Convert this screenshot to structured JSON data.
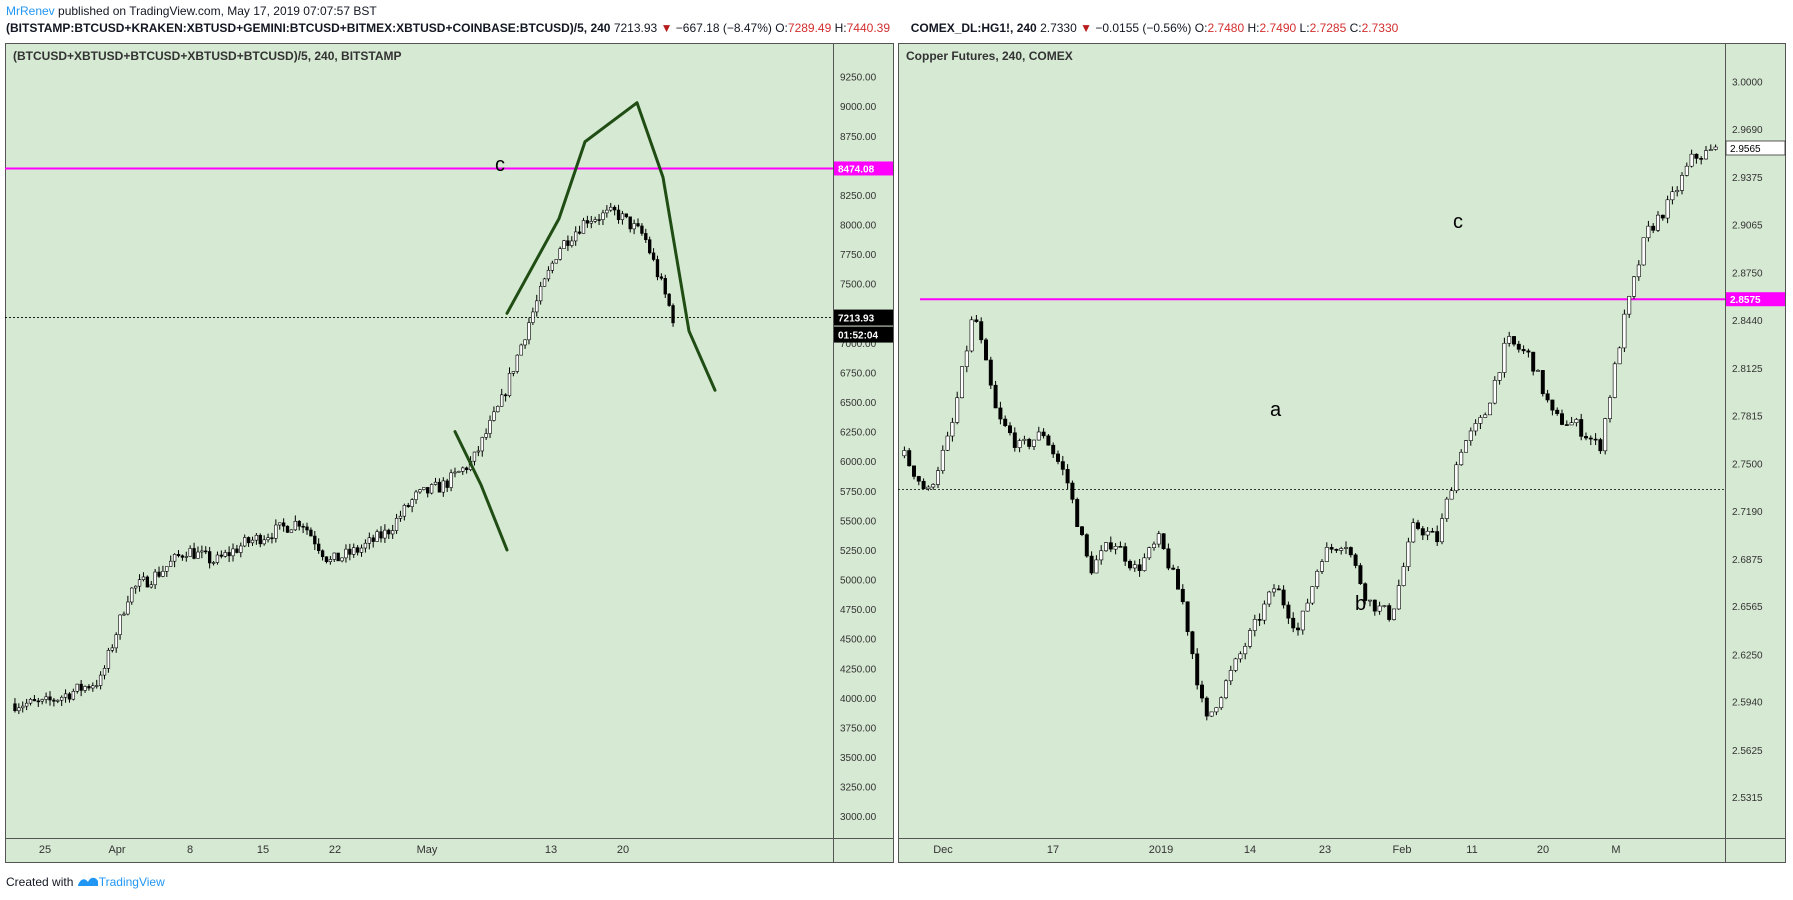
{
  "header": {
    "author": "MrRenev",
    "published": "published on TradingView.com, May 17, 2019 07:07:57 BST",
    "left_symbol": "(BITSTAMP:BTCUSD+KRAKEN:XBTUSD+GEMINI:BTCUSD+BITMEX:XBTUSD+COINBASE:BTCUSD)/5, 240",
    "left_price": "7213.93",
    "left_change": "−667.18 (−8.47%)",
    "left_ohlc": [
      "O:",
      "7289.49",
      "H:",
      "7440.39"
    ],
    "right_symbol": "COMEX_DL:HG1!, 240",
    "right_price": "2.7330",
    "right_change": "−0.0155 (−0.56%)",
    "right_ohlc": [
      "O:",
      "2.7480",
      "H:",
      "2.7490",
      "L:",
      "2.7285",
      "C:",
      "2.7330"
    ]
  },
  "footer": {
    "created": "Created with",
    "brand": "TradingView"
  },
  "colors": {
    "background": "#d6e9d3",
    "candle": "#000000",
    "level_line": "#ff00ff",
    "drawing": "#1f4d14",
    "label_red": "#b71c1c"
  },
  "chart_data": [
    {
      "type": "candlestick",
      "title": "(BTCUSD+XBTUSD+BTCUSD+XBTUSD+BTCUSD)/5, 240, BITSTAMP",
      "ylim": [
        2900,
        9450
      ],
      "y_ticks": [
        "9250.00",
        "9000.00",
        "8750.00",
        "8500.00",
        "8250.00",
        "8000.00",
        "7750.00",
        "7500.00",
        "7250.00",
        "7000.00",
        "6750.00",
        "6500.00",
        "6250.00",
        "6000.00",
        "5750.00",
        "5500.00",
        "5250.00",
        "5000.00",
        "4750.00",
        "4500.00",
        "4250.00",
        "4000.00",
        "3750.00",
        "3500.00",
        "3250.00",
        "3000.00"
      ],
      "x_ticks": [
        "25",
        "Apr",
        "8",
        "15",
        "22",
        "May",
        "13",
        "20"
      ],
      "series": [
        {
          "x": [
            "Mar 24",
            "Mar 28",
            "Mar 31",
            "Apr 2",
            "Apr 3",
            "Apr 6",
            "Apr 10",
            "Apr 14",
            "Apr 18",
            "Apr 22",
            "Apr 25",
            "Apr 26",
            "Apr 29",
            "May 1",
            "May 4",
            "May 7",
            "May 9",
            "May 11",
            "May 12",
            "May 13",
            "May 14",
            "May 15",
            "May 16",
            "May 17"
          ],
          "values": [
            3950,
            3950,
            4050,
            4150,
            4900,
            5050,
            5250,
            5150,
            5300,
            5400,
            5500,
            5150,
            5250,
            5400,
            5700,
            5800,
            6000,
            6500,
            7200,
            7800,
            8050,
            8100,
            7900,
            7214
          ]
        }
      ],
      "level_line": {
        "value": 8474.08,
        "label": "8474.08"
      },
      "last_price": {
        "value": 7213.93,
        "label": "7213.93",
        "timer": "01:52:04"
      },
      "projection": [
        [
          19,
          7250
        ],
        [
          21,
          8050
        ],
        [
          22,
          8700
        ],
        [
          24,
          9030
        ],
        [
          25,
          8400
        ],
        [
          26,
          7100
        ],
        [
          27,
          6600
        ]
      ],
      "projection2": [
        [
          17,
          6250
        ],
        [
          18,
          5800
        ],
        [
          19,
          5250
        ]
      ],
      "annotations": [
        "c"
      ]
    },
    {
      "type": "candlestick",
      "title": "Copper Futures, 240, COMEX",
      "ylim": [
        2.51,
        3.02
      ],
      "y_ticks": [
        "3.0000",
        "2.9690",
        "2.9375",
        "2.9065",
        "2.8750",
        "2.8440",
        "2.8125",
        "2.7815",
        "2.7500",
        "2.7190",
        "2.6875",
        "2.6565",
        "2.6250",
        "2.5940",
        "2.5625",
        "2.5315"
      ],
      "x_ticks": [
        "Dec",
        "17",
        "2019",
        "14",
        "23",
        "Feb",
        "11",
        "20",
        "M"
      ],
      "series": [
        {
          "x": [
            "Nov 26",
            "Nov 28",
            "Nov 30",
            "Dec 3",
            "Dec 5",
            "Dec 7",
            "Dec 11",
            "Dec 14",
            "Dec 17",
            "Dec 19",
            "Dec 21",
            "Dec 26",
            "Dec 28",
            "Jan 2",
            "Jan 3",
            "Jan 7",
            "Jan 10",
            "Jan 14",
            "Jan 16",
            "Jan 18",
            "Jan 22",
            "Jan 24",
            "Jan 25",
            "Jan 28",
            "Jan 30",
            "Feb 1",
            "Feb 5",
            "Feb 7",
            "Feb 11",
            "Feb 13",
            "Feb 15",
            "Feb 18",
            "Feb 20",
            "Feb 22",
            "Feb 25",
            "Feb 27"
          ],
          "values": [
            2.755,
            2.73,
            2.77,
            2.85,
            2.78,
            2.76,
            2.77,
            2.74,
            2.68,
            2.7,
            2.68,
            2.7,
            2.66,
            2.58,
            2.61,
            2.64,
            2.67,
            2.64,
            2.69,
            2.7,
            2.66,
            2.65,
            2.71,
            2.7,
            2.76,
            2.78,
            2.83,
            2.82,
            2.78,
            2.775,
            2.76,
            2.84,
            2.9,
            2.92,
            2.95,
            2.955
          ]
        }
      ],
      "level_line": {
        "value": 2.8575,
        "label": "2.8575"
      },
      "last_price": {
        "value": 2.9565,
        "label": "2.9565"
      },
      "current_price_line": 2.733,
      "annotations": [
        "a",
        "b",
        "c"
      ]
    }
  ]
}
